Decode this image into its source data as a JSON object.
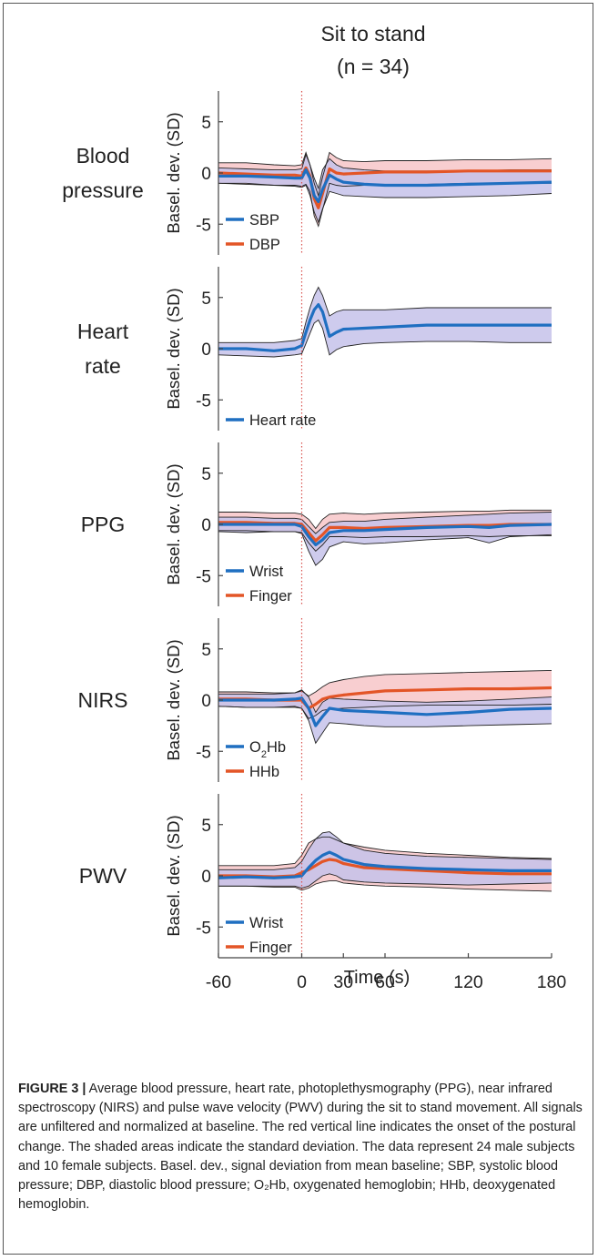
{
  "chart_data": {
    "type": "line",
    "title": "Sit to stand",
    "subtitle": "(n = 34)",
    "xlabel": "Time (s)",
    "x_ticks": [
      -60,
      0,
      30,
      60,
      120,
      180
    ],
    "x_range": [
      -60,
      180
    ],
    "y_ticks": [
      5,
      0,
      -5
    ],
    "ylim": [
      -8,
      8
    ],
    "onset_line": {
      "x": 0,
      "color": "#d9534f",
      "style": "dotted"
    },
    "colors": {
      "blue": "#1f6fc1",
      "red": "#e35527",
      "blue_fill": "#c5c2ea",
      "red_fill": "#f7c5c8",
      "axis": "#444444"
    },
    "panels": [
      {
        "label": "Blood pressure",
        "label_lines": [
          "Blood",
          "pressure"
        ],
        "ylabel": "Basel. dev. (SD)",
        "series": [
          {
            "name": "SBP",
            "color": "blue",
            "x": [
              -60,
              -40,
              -20,
              -5,
              0,
              3,
              6,
              9,
              12,
              15,
              20,
              25,
              30,
              45,
              60,
              90,
              120,
              150,
              180
            ],
            "mean": [
              -0.3,
              -0.3,
              -0.4,
              -0.5,
              -0.5,
              0.3,
              -0.5,
              -2.2,
              -2.8,
              -1.6,
              -0.2,
              -0.6,
              -0.9,
              -1.1,
              -1.2,
              -1.2,
              -1.1,
              -1.0,
              -0.9
            ],
            "sd_upper": [
              0.5,
              0.4,
              0.3,
              0.3,
              0.4,
              1.8,
              0.8,
              -0.5,
              -1.5,
              0.3,
              1.4,
              0.8,
              0.5,
              0.3,
              0.2,
              0.2,
              0.2,
              0.3,
              0.3
            ],
            "sd_lower": [
              -1.0,
              -1.0,
              -1.2,
              -1.3,
              -1.4,
              -1.2,
              -2.2,
              -3.8,
              -4.8,
              -3.5,
              -1.8,
              -2.0,
              -2.2,
              -2.3,
              -2.4,
              -2.4,
              -2.3,
              -2.2,
              -2.0
            ]
          },
          {
            "name": "DBP",
            "color": "red",
            "x": [
              -60,
              -40,
              -20,
              -5,
              0,
              3,
              6,
              9,
              12,
              15,
              20,
              25,
              30,
              45,
              60,
              90,
              120,
              150,
              180
            ],
            "mean": [
              0.0,
              -0.1,
              -0.2,
              -0.2,
              -0.3,
              0.5,
              -0.3,
              -2.5,
              -3.4,
              -2.0,
              0.4,
              0.0,
              -0.1,
              0.0,
              0.1,
              0.1,
              0.2,
              0.2,
              0.2
            ],
            "sd_upper": [
              1.0,
              1.0,
              0.8,
              0.7,
              0.8,
              2.0,
              0.8,
              -1.0,
              -2.2,
              -0.4,
              2.0,
              1.5,
              1.2,
              1.1,
              1.2,
              1.2,
              1.3,
              1.3,
              1.4
            ],
            "sd_lower": [
              -1.0,
              -1.1,
              -1.2,
              -1.2,
              -1.3,
              -1.1,
              -1.8,
              -4.2,
              -5.2,
              -3.6,
              -1.0,
              -1.2,
              -1.3,
              -1.2,
              -1.2,
              -1.1,
              -1.0,
              -1.0,
              -1.0
            ]
          }
        ]
      },
      {
        "label": "Heart rate",
        "label_lines": [
          "Heart",
          "rate"
        ],
        "ylabel": "Basel. dev. (SD)",
        "series": [
          {
            "name": "Heart rate",
            "color": "blue",
            "x": [
              -60,
              -40,
              -20,
              -5,
              0,
              3,
              6,
              9,
              12,
              15,
              20,
              25,
              30,
              45,
              60,
              90,
              120,
              150,
              180
            ],
            "mean": [
              0.0,
              0.0,
              -0.2,
              0.0,
              0.3,
              1.6,
              2.8,
              3.8,
              4.3,
              3.6,
              1.2,
              1.6,
              1.9,
              2.0,
              2.1,
              2.3,
              2.3,
              2.3,
              2.3
            ],
            "sd_upper": [
              0.6,
              0.6,
              0.6,
              0.8,
              1.0,
              2.6,
              4.0,
              5.2,
              6.0,
              5.2,
              3.2,
              3.6,
              3.8,
              3.8,
              3.8,
              4.0,
              4.0,
              4.0,
              4.0
            ],
            "sd_lower": [
              -0.6,
              -0.7,
              -0.8,
              -0.6,
              -0.5,
              0.5,
              1.5,
              2.5,
              2.8,
              2.0,
              -0.6,
              -0.1,
              0.2,
              0.5,
              0.6,
              0.7,
              0.7,
              0.6,
              0.6
            ]
          }
        ]
      },
      {
        "label": "PPG",
        "label_lines": [
          "PPG"
        ],
        "ylabel": "Basel. dev. (SD)",
        "series": [
          {
            "name": "Wrist",
            "color": "blue",
            "x": [
              -60,
              -40,
              -20,
              -5,
              0,
              5,
              10,
              15,
              20,
              30,
              45,
              60,
              90,
              120,
              135,
              150,
              180
            ],
            "mean": [
              0.0,
              0.0,
              0.0,
              0.0,
              -0.2,
              -1.2,
              -2.0,
              -1.5,
              -0.8,
              -0.6,
              -0.6,
              -0.5,
              -0.3,
              -0.2,
              -0.3,
              -0.1,
              0.0
            ],
            "sd_upper": [
              0.7,
              0.7,
              0.6,
              0.6,
              0.5,
              -0.2,
              -0.9,
              -0.3,
              0.2,
              0.3,
              0.3,
              0.5,
              0.7,
              0.9,
              1.0,
              1.1,
              1.2
            ],
            "sd_lower": [
              -0.7,
              -0.8,
              -0.7,
              -0.7,
              -0.9,
              -2.6,
              -4.0,
              -3.4,
              -2.2,
              -1.7,
              -1.9,
              -1.8,
              -1.5,
              -1.3,
              -1.8,
              -1.2,
              -1.0
            ]
          },
          {
            "name": "Finger",
            "color": "red",
            "x": [
              -60,
              -40,
              -20,
              -5,
              0,
              5,
              10,
              15,
              20,
              30,
              45,
              60,
              90,
              120,
              135,
              150,
              180
            ],
            "mean": [
              0.2,
              0.2,
              0.1,
              0.1,
              0.0,
              -0.8,
              -1.6,
              -1.0,
              -0.3,
              -0.3,
              -0.4,
              -0.3,
              -0.2,
              -0.1,
              -0.1,
              0.0,
              0.0
            ],
            "sd_upper": [
              1.2,
              1.2,
              1.1,
              1.1,
              1.0,
              0.5,
              -0.4,
              0.5,
              1.0,
              1.1,
              1.0,
              1.1,
              1.2,
              1.3,
              1.3,
              1.4,
              1.4
            ],
            "sd_lower": [
              -0.6,
              -0.6,
              -0.7,
              -0.7,
              -0.8,
              -1.8,
              -2.6,
              -2.0,
              -1.2,
              -1.2,
              -1.3,
              -1.2,
              -1.2,
              -1.1,
              -1.2,
              -1.1,
              -1.1
            ]
          }
        ]
      },
      {
        "label": "NIRS",
        "label_lines": [
          "NIRS"
        ],
        "ylabel": "Basel. dev. (SD)",
        "series": [
          {
            "name": "O₂Hb",
            "color": "blue",
            "x": [
              -60,
              -40,
              -20,
              -5,
              0,
              5,
              10,
              15,
              20,
              30,
              45,
              60,
              90,
              120,
              150,
              180
            ],
            "mean": [
              0.0,
              0.0,
              0.0,
              0.1,
              0.2,
              -0.8,
              -2.5,
              -1.6,
              -0.8,
              -1.0,
              -1.1,
              -1.2,
              -1.4,
              -1.2,
              -0.9,
              -0.8
            ],
            "sd_upper": [
              0.6,
              0.6,
              0.6,
              0.7,
              1.0,
              0.3,
              -1.2,
              -0.2,
              0.2,
              0.1,
              0.0,
              -0.1,
              -0.2,
              -0.1,
              0.1,
              0.3
            ],
            "sd_lower": [
              -0.6,
              -0.7,
              -0.7,
              -0.6,
              -0.8,
              -2.0,
              -4.2,
              -3.2,
              -2.2,
              -2.3,
              -2.5,
              -2.6,
              -2.6,
              -2.5,
              -2.4,
              -2.3
            ]
          },
          {
            "name": "HHb",
            "color": "red",
            "x": [
              -60,
              -40,
              -20,
              -5,
              0,
              5,
              10,
              15,
              20,
              30,
              45,
              60,
              90,
              120,
              150,
              180
            ],
            "mean": [
              0.1,
              0.1,
              0.0,
              0.0,
              0.0,
              -0.8,
              -0.4,
              0.1,
              0.3,
              0.5,
              0.7,
              0.9,
              1.0,
              1.1,
              1.1,
              1.2
            ],
            "sd_upper": [
              0.8,
              0.8,
              0.7,
              0.7,
              0.9,
              0.4,
              0.8,
              1.3,
              1.7,
              2.0,
              2.3,
              2.5,
              2.6,
              2.7,
              2.8,
              2.9
            ],
            "sd_lower": [
              -0.6,
              -0.7,
              -0.7,
              -0.7,
              -0.8,
              -1.8,
              -1.5,
              -1.0,
              -0.9,
              -0.8,
              -0.7,
              -0.6,
              -0.5,
              -0.5,
              -0.5,
              -0.4
            ]
          }
        ]
      },
      {
        "label": "PWV",
        "label_lines": [
          "PWV"
        ],
        "ylabel": "Basel. dev. (SD)",
        "series": [
          {
            "name": "Wrist",
            "color": "blue",
            "x": [
              -60,
              -40,
              -20,
              -5,
              0,
              5,
              10,
              15,
              20,
              25,
              30,
              45,
              60,
              90,
              120,
              150,
              180
            ],
            "mean": [
              -0.2,
              -0.1,
              -0.2,
              -0.1,
              0.0,
              0.8,
              1.5,
              2.0,
              2.3,
              2.0,
              1.6,
              1.1,
              0.9,
              0.7,
              0.6,
              0.5,
              0.5
            ],
            "sd_upper": [
              0.6,
              0.6,
              0.6,
              0.8,
              1.4,
              2.6,
              3.6,
              4.2,
              4.3,
              3.8,
              3.2,
              2.5,
              2.2,
              1.9,
              1.8,
              1.7,
              1.6
            ],
            "sd_lower": [
              -1.0,
              -1.0,
              -1.0,
              -1.0,
              -1.2,
              -1.0,
              -0.5,
              0.0,
              0.2,
              0.0,
              -0.4,
              -0.6,
              -0.7,
              -0.8,
              -0.9,
              -0.8,
              -0.7
            ]
          },
          {
            "name": "Finger",
            "color": "red",
            "x": [
              -60,
              -40,
              -20,
              -5,
              0,
              5,
              10,
              15,
              20,
              25,
              30,
              45,
              60,
              90,
              120,
              150,
              180
            ],
            "mean": [
              0.0,
              0.0,
              -0.1,
              0.0,
              0.3,
              0.6,
              1.0,
              1.4,
              1.6,
              1.5,
              1.2,
              0.8,
              0.7,
              0.5,
              0.3,
              0.2,
              0.2
            ],
            "sd_upper": [
              1.0,
              1.0,
              1.0,
              1.2,
              2.0,
              3.2,
              3.6,
              3.8,
              3.8,
              3.5,
              3.2,
              2.8,
              2.5,
              2.2,
              2.0,
              1.8,
              1.7
            ],
            "sd_lower": [
              -1.0,
              -1.0,
              -1.1,
              -1.1,
              -1.4,
              -1.2,
              -0.8,
              -0.6,
              -0.5,
              -0.5,
              -0.7,
              -0.9,
              -1.0,
              -1.1,
              -1.3,
              -1.4,
              -1.5
            ]
          }
        ]
      }
    ]
  },
  "caption": {
    "label": "FIGURE 3 |",
    "text": " Average blood pressure, heart rate, photoplethysmography (PPG), near infrared spectroscopy (NIRS) and pulse wave velocity (PWV) during the sit to stand movement. All signals are unfiltered and normalized at baseline. The red vertical line indicates the onset of the postural change. The shaded areas indicate the standard deviation. The data represent 24 male subjects and 10 female subjects. Basel. dev., signal deviation from mean baseline; SBP, systolic blood pressure; DBP, diastolic blood pressure; O₂Hb, oxygenated hemoglobin; HHb, deoxygenated hemoglobin."
  }
}
